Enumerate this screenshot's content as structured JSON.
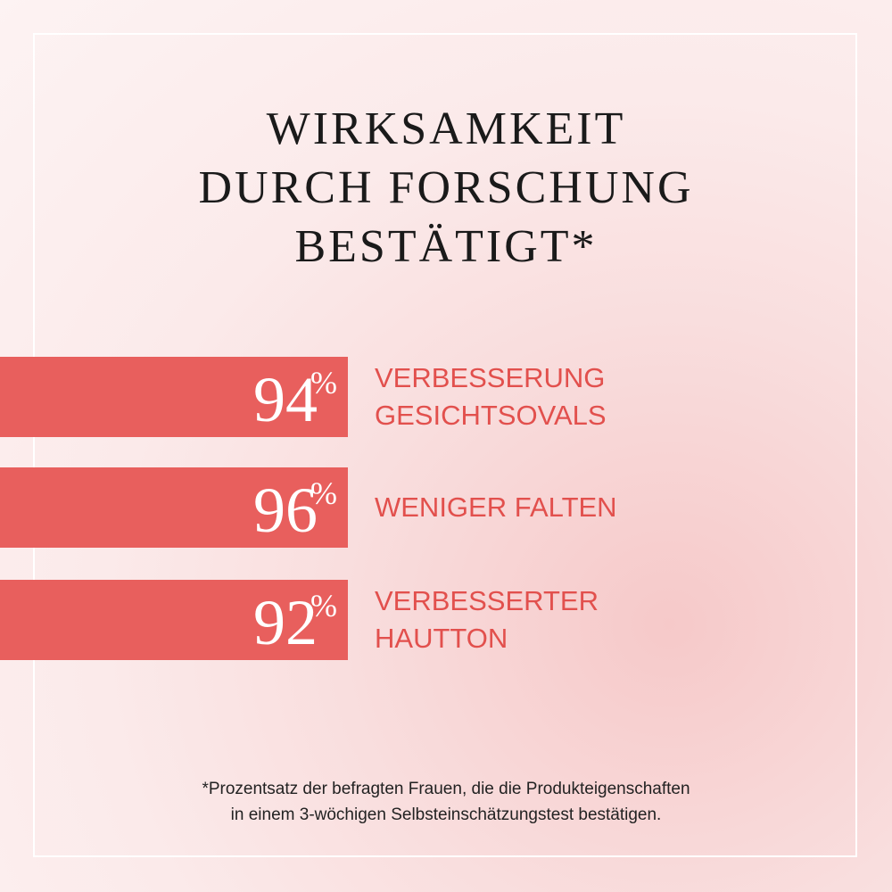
{
  "title": [
    "WIRKSAMKEIT",
    "DURCH FORSCHUNG",
    "BESTÄTIGT*"
  ],
  "stats": [
    {
      "value": 94,
      "unit": "%",
      "label": [
        "VERBESSERUNG",
        "GESICHTSOVALS"
      ]
    },
    {
      "value": 96,
      "unit": "%",
      "label": [
        "WENIGER FALTEN"
      ]
    },
    {
      "value": 92,
      "unit": "%",
      "label": [
        "VERBESSERTER",
        "HAUTTON"
      ]
    }
  ],
  "footnote": [
    "*Prozentsatz der befragten Frauen, die die Produkteigenschaften",
    "in einem 3-wöchigen Selbsteinschätzungstest bestätigen."
  ]
}
